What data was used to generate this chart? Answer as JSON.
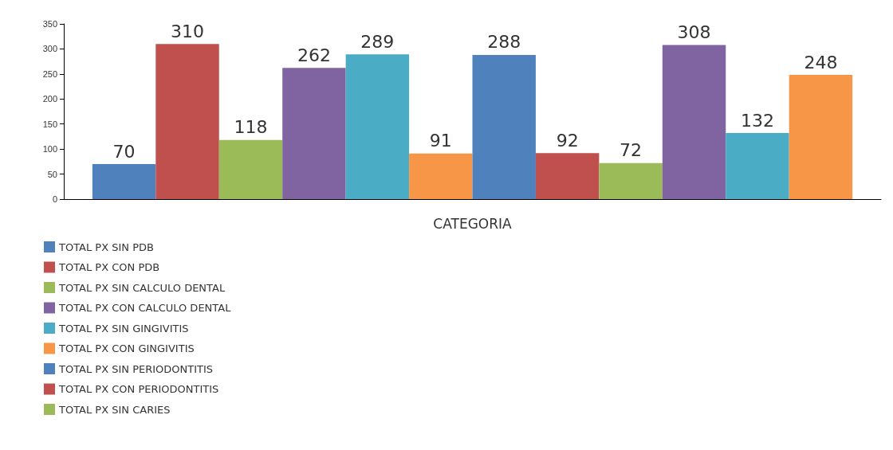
{
  "chart_data": {
    "type": "bar",
    "categories": [
      "CATEGORIA"
    ],
    "series": [
      {
        "name": "TOTAL PX SIN PDB",
        "color": "#4f81bd",
        "values": [
          70
        ]
      },
      {
        "name": "TOTAL PX CON PDB",
        "color": "#c0504d",
        "values": [
          310
        ]
      },
      {
        "name": "TOTAL PX SIN CALCULO DENTAL",
        "color": "#9bbb59",
        "values": [
          118
        ]
      },
      {
        "name": "TOTAL PX CON CALCULO DENTAL",
        "color": "#8064a2",
        "values": [
          262
        ]
      },
      {
        "name": "TOTAL PX SIN GINGIVITIS",
        "color": "#4bacc6",
        "values": [
          289
        ]
      },
      {
        "name": "TOTAL PX CON GINGIVITIS",
        "color": "#f79646",
        "values": [
          91
        ]
      },
      {
        "name": "TOTAL PX SIN PERIODONTITIS",
        "color": "#4f81bd",
        "values": [
          288
        ]
      },
      {
        "name": "TOTAL PX CON PERIODONTITIS",
        "color": "#c0504d",
        "values": [
          92
        ]
      },
      {
        "name": "TOTAL PX SIN CARIES",
        "color": "#9bbb59",
        "values": [
          72
        ]
      },
      {
        "color": "#8064a2",
        "values": [
          308
        ]
      },
      {
        "color": "#4bacc6",
        "values": [
          132
        ]
      },
      {
        "color": "#f79646",
        "values": [
          248
        ]
      }
    ],
    "ylim": [
      0,
      350
    ],
    "yticks": [
      0,
      50,
      100,
      150,
      200,
      250,
      300,
      350
    ],
    "grid": false,
    "legend": "bottom left",
    "data_labels": true
  }
}
